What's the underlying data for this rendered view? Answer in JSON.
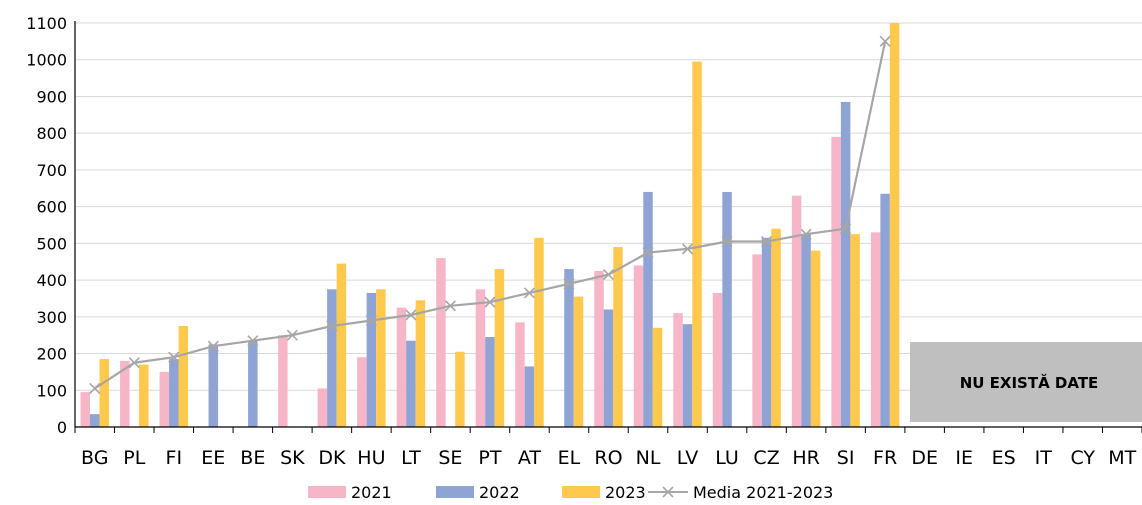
{
  "chart_data": {
    "type": "bar",
    "categories": [
      "BG",
      "PL",
      "FI",
      "EE",
      "BE",
      "SK",
      "DK",
      "HU",
      "LT",
      "SE",
      "PT",
      "AT",
      "EL",
      "RO",
      "NL",
      "LV",
      "LU",
      "CZ",
      "HR",
      "SI",
      "FR",
      "DE",
      "IE",
      "ES",
      "IT",
      "CY",
      "MT"
    ],
    "series": [
      {
        "name": "2021",
        "color": "#F7B6C8",
        "values": [
          95,
          180,
          150,
          null,
          null,
          250,
          105,
          190,
          325,
          460,
          375,
          285,
          null,
          425,
          440,
          310,
          365,
          470,
          630,
          790,
          530,
          null,
          null,
          null,
          null,
          null,
          null
        ]
      },
      {
        "name": "2022",
        "color": "#8FA3D4",
        "values": [
          35,
          null,
          185,
          225,
          235,
          null,
          375,
          365,
          235,
          null,
          245,
          165,
          430,
          320,
          640,
          280,
          640,
          515,
          525,
          885,
          635,
          null,
          null,
          null,
          null,
          null,
          null
        ]
      },
      {
        "name": "2023",
        "color": "#FFC94D",
        "values": [
          185,
          170,
          275,
          null,
          null,
          null,
          445,
          375,
          345,
          205,
          430,
          515,
          355,
          490,
          270,
          995,
          null,
          540,
          480,
          525,
          1100,
          null,
          null,
          null,
          null,
          null,
          null
        ]
      }
    ],
    "line": {
      "name": "Media 2021-2023",
      "color": "#A6A6A6",
      "values": [
        105,
        175,
        190,
        220,
        235,
        250,
        275,
        290,
        305,
        330,
        340,
        365,
        390,
        415,
        475,
        485,
        505,
        505,
        525,
        540,
        1050,
        null,
        null,
        null,
        null,
        null,
        null
      ]
    },
    "ylim": [
      0,
      1100
    ],
    "yticks": [
      "0",
      "100",
      "200",
      "300",
      "400",
      "500",
      "600",
      "700",
      "800",
      "900",
      "1000",
      "1100"
    ],
    "no_data_label": "NU EXISTĂ DATE",
    "no_data_categories": [
      "DE",
      "IE",
      "ES",
      "IT",
      "CY",
      "MT"
    ],
    "legend_position": "bottom",
    "grid": true
  }
}
